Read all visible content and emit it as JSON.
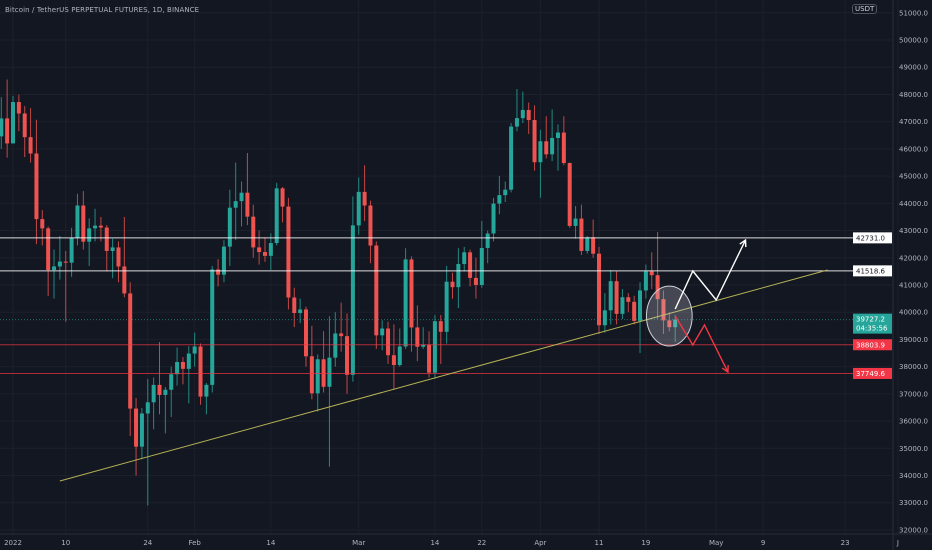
{
  "header": {
    "title": "Bitcoin / TetherUS PERPETUAL FUTURES, 1D, BINANCE",
    "currency": "USDT"
  },
  "colors": {
    "background": "#131722",
    "up": "#26a69a",
    "down": "#ef5350",
    "grid": "#1c202b",
    "support": "#ffffff",
    "resistance_red": "#f23645",
    "trendline": "#b5b254"
  },
  "chart_data": {
    "type": "candlestick",
    "title": "Bitcoin / TetherUS PERPETUAL FUTURES, 1D, BINANCE",
    "ylim": [
      32000,
      51000
    ],
    "x_range": [
      "2021-12-30",
      "2022-06-06"
    ],
    "grid": true,
    "y_ticks": [
      32000,
      33000,
      34000,
      35000,
      36000,
      37000,
      38000,
      39000,
      40000,
      41000,
      42000,
      43000,
      44000,
      45000,
      46000,
      47000,
      48000,
      49000,
      50000,
      51000
    ],
    "y_tick_labels": [
      "32000.0",
      "33000.0",
      "34000.0",
      "35000.0",
      "36000.0",
      "37000.0",
      "38000.0",
      "39000.0",
      "40000.0",
      "41000.0",
      "42000.0",
      "43000.0",
      "44000.0",
      "45000.0",
      "46000.0",
      "47000.0",
      "48000.0",
      "49000.0",
      "50000.0",
      "51000.0"
    ],
    "x_ticks": [
      {
        "label": "2022",
        "date": "2022-01-01"
      },
      {
        "label": "10",
        "date": "2022-01-10"
      },
      {
        "label": "24",
        "date": "2022-01-24"
      },
      {
        "label": "Feb",
        "date": "2022-02-01"
      },
      {
        "label": "14",
        "date": "2022-02-14"
      },
      {
        "label": "Mar",
        "date": "2022-03-01"
      },
      {
        "label": "14",
        "date": "2022-03-14"
      },
      {
        "label": "22",
        "date": "2022-03-22"
      },
      {
        "label": "Apr",
        "date": "2022-04-01"
      },
      {
        "label": "11",
        "date": "2022-04-11"
      },
      {
        "label": "19",
        "date": "2022-04-19"
      },
      {
        "label": "May",
        "date": "2022-05-01"
      },
      {
        "label": "9",
        "date": "2022-05-09"
      },
      {
        "label": "23",
        "date": "2022-05-23"
      },
      {
        "label": "J",
        "date": "2022-06-01"
      }
    ],
    "candles_format": [
      "date",
      "open",
      "high",
      "low",
      "close"
    ],
    "candles": [
      [
        "2021-12-30",
        46460,
        47900,
        46000,
        47120
      ],
      [
        "2021-12-31",
        47120,
        48550,
        45680,
        46200
      ],
      [
        "2022-01-01",
        46200,
        47950,
        46200,
        47720
      ],
      [
        "2022-01-02",
        47720,
        47990,
        46650,
        47300
      ],
      [
        "2022-01-03",
        47300,
        47570,
        45700,
        46430
      ],
      [
        "2022-01-04",
        46430,
        47500,
        45500,
        45830
      ],
      [
        "2022-01-05",
        45830,
        47070,
        42500,
        43420
      ],
      [
        "2022-01-06",
        43420,
        43750,
        42450,
        43080
      ],
      [
        "2022-01-07",
        43080,
        43150,
        40600,
        41550
      ],
      [
        "2022-01-08",
        41550,
        42300,
        40500,
        41680
      ],
      [
        "2022-01-09",
        41680,
        42800,
        41200,
        41860
      ],
      [
        "2022-01-10",
        41860,
        42250,
        39650,
        41820
      ],
      [
        "2022-01-11",
        41820,
        43100,
        41300,
        42730
      ],
      [
        "2022-01-12",
        42730,
        44350,
        42450,
        43920
      ],
      [
        "2022-01-13",
        43920,
        44450,
        42300,
        42590
      ],
      [
        "2022-01-14",
        42590,
        43450,
        41700,
        43080
      ],
      [
        "2022-01-15",
        43080,
        43800,
        42600,
        43180
      ],
      [
        "2022-01-16",
        43180,
        43500,
        42600,
        43110
      ],
      [
        "2022-01-17",
        43110,
        43200,
        41500,
        42250
      ],
      [
        "2022-01-18",
        42250,
        42700,
        41250,
        42380
      ],
      [
        "2022-01-19",
        42380,
        42600,
        41100,
        41680
      ],
      [
        "2022-01-20",
        41680,
        43500,
        40550,
        40690
      ],
      [
        "2022-01-21",
        40690,
        41100,
        35450,
        36460
      ],
      [
        "2022-01-22",
        36460,
        36850,
        34000,
        35060
      ],
      [
        "2022-01-23",
        35060,
        36480,
        34600,
        36280
      ],
      [
        "2022-01-24",
        36280,
        37550,
        32900,
        36690
      ],
      [
        "2022-01-25",
        36690,
        37600,
        35700,
        37330
      ],
      [
        "2022-01-26",
        37330,
        38900,
        36250,
        36960
      ],
      [
        "2022-01-27",
        36960,
        37250,
        35550,
        37150
      ],
      [
        "2022-01-28",
        37150,
        38000,
        36150,
        37720
      ],
      [
        "2022-01-29",
        37720,
        38700,
        37300,
        38170
      ],
      [
        "2022-01-30",
        38170,
        38350,
        37350,
        37920
      ],
      [
        "2022-01-31",
        37920,
        38750,
        36650,
        38480
      ],
      [
        "2022-02-01",
        38480,
        39250,
        38000,
        38740
      ],
      [
        "2022-02-02",
        38740,
        38850,
        36600,
        36900
      ],
      [
        "2022-02-03",
        36900,
        37400,
        36250,
        37330
      ],
      [
        "2022-02-04",
        37330,
        41700,
        37050,
        41570
      ],
      [
        "2022-02-05",
        41570,
        41950,
        40950,
        41380
      ],
      [
        "2022-02-06",
        41380,
        42650,
        41100,
        42410
      ],
      [
        "2022-02-07",
        42410,
        44500,
        41700,
        43840
      ],
      [
        "2022-02-08",
        43840,
        45500,
        42650,
        44080
      ],
      [
        "2022-02-09",
        44080,
        44800,
        43150,
        44390
      ],
      [
        "2022-02-10",
        44390,
        45850,
        43200,
        43510
      ],
      [
        "2022-02-11",
        43510,
        43950,
        42000,
        42380
      ],
      [
        "2022-02-12",
        42380,
        43000,
        41750,
        42210
      ],
      [
        "2022-02-13",
        42210,
        42750,
        41850,
        42070
      ],
      [
        "2022-02-14",
        42070,
        42900,
        41550,
        42540
      ],
      [
        "2022-02-15",
        42540,
        44750,
        42450,
        44550
      ],
      [
        "2022-02-16",
        44550,
        44600,
        43300,
        43880
      ],
      [
        "2022-02-17",
        43880,
        44200,
        40100,
        40540
      ],
      [
        "2022-02-18",
        40540,
        40900,
        39450,
        39970
      ],
      [
        "2022-02-19",
        39970,
        40500,
        39600,
        40100
      ],
      [
        "2022-02-20",
        40100,
        40200,
        38000,
        38380
      ],
      [
        "2022-02-21",
        38380,
        39500,
        36800,
        37020
      ],
      [
        "2022-02-22",
        37020,
        38450,
        36350,
        38270
      ],
      [
        "2022-02-23",
        38270,
        39300,
        37050,
        37260
      ],
      [
        "2022-02-24",
        37260,
        39850,
        34320,
        38330
      ],
      [
        "2022-02-25",
        38330,
        40000,
        38000,
        39220
      ],
      [
        "2022-02-26",
        39220,
        40350,
        38550,
        39120
      ],
      [
        "2022-02-27",
        39120,
        39950,
        37000,
        37700
      ],
      [
        "2022-02-28",
        37700,
        44250,
        37450,
        43190
      ],
      [
        "2022-03-01",
        43190,
        44950,
        42850,
        44420
      ],
      [
        "2022-03-02",
        44420,
        45400,
        43350,
        43920
      ],
      [
        "2022-03-03",
        43920,
        44100,
        41800,
        42450
      ],
      [
        "2022-03-04",
        42450,
        42600,
        38650,
        39150
      ],
      [
        "2022-03-05",
        39150,
        39700,
        38600,
        39400
      ],
      [
        "2022-03-06",
        39400,
        39650,
        38100,
        38420
      ],
      [
        "2022-03-07",
        38420,
        39550,
        37150,
        38060
      ],
      [
        "2022-03-08",
        38060,
        39400,
        38000,
        38740
      ],
      [
        "2022-03-09",
        38740,
        42350,
        38650,
        41940
      ],
      [
        "2022-03-10",
        41940,
        42050,
        38550,
        39440
      ],
      [
        "2022-03-11",
        39440,
        40250,
        38200,
        38730
      ],
      [
        "2022-03-12",
        38730,
        39450,
        38650,
        38810
      ],
      [
        "2022-03-13",
        38810,
        39300,
        37600,
        37780
      ],
      [
        "2022-03-14",
        37780,
        39900,
        37550,
        39670
      ],
      [
        "2022-03-15",
        39670,
        39900,
        38100,
        39280
      ],
      [
        "2022-03-16",
        39280,
        41700,
        38850,
        41120
      ],
      [
        "2022-03-17",
        41120,
        41450,
        40500,
        40920
      ],
      [
        "2022-03-18",
        40920,
        42350,
        40150,
        41770
      ],
      [
        "2022-03-19",
        41770,
        42400,
        41500,
        42200
      ],
      [
        "2022-03-20",
        42200,
        42300,
        40950,
        41260
      ],
      [
        "2022-03-21",
        41260,
        42000,
        40500,
        41000
      ],
      [
        "2022-03-22",
        41000,
        43350,
        40900,
        42360
      ],
      [
        "2022-03-23",
        42360,
        43000,
        41800,
        42890
      ],
      [
        "2022-03-24",
        42890,
        44200,
        42600,
        43990
      ],
      [
        "2022-03-25",
        43990,
        45000,
        43600,
        44300
      ],
      [
        "2022-03-26",
        44300,
        44800,
        44050,
        44500
      ],
      [
        "2022-03-27",
        44500,
        46950,
        44400,
        46820
      ],
      [
        "2022-03-28",
        46820,
        48200,
        46650,
        47130
      ],
      [
        "2022-03-29",
        47130,
        48100,
        46950,
        47430
      ],
      [
        "2022-03-30",
        47430,
        47700,
        46550,
        47060
      ],
      [
        "2022-03-31",
        47060,
        47600,
        45200,
        45510
      ],
      [
        "2022-04-01",
        45510,
        46700,
        44200,
        46280
      ],
      [
        "2022-04-02",
        46280,
        47200,
        45650,
        45800
      ],
      [
        "2022-04-03",
        45800,
        47450,
        45550,
        46400
      ],
      [
        "2022-04-04",
        46400,
        46900,
        45200,
        46600
      ],
      [
        "2022-04-05",
        46600,
        47200,
        45400,
        45480
      ],
      [
        "2022-04-06",
        45480,
        45500,
        43100,
        43170
      ],
      [
        "2022-04-07",
        43170,
        43900,
        42700,
        43440
      ],
      [
        "2022-04-08",
        43440,
        43950,
        42100,
        42250
      ],
      [
        "2022-04-09",
        42250,
        42800,
        42150,
        42750
      ],
      [
        "2022-04-10",
        42750,
        43400,
        42000,
        42150
      ],
      [
        "2022-04-11",
        42150,
        42400,
        39200,
        39520
      ],
      [
        "2022-04-12",
        39520,
        40700,
        39250,
        40070
      ],
      [
        "2022-04-13",
        40070,
        41550,
        39550,
        41140
      ],
      [
        "2022-04-14",
        41140,
        41500,
        39550,
        39940
      ],
      [
        "2022-04-15",
        39940,
        40850,
        39750,
        40550
      ],
      [
        "2022-04-16",
        40550,
        40700,
        40000,
        40380
      ],
      [
        "2022-04-17",
        40380,
        40600,
        39550,
        39680
      ],
      [
        "2022-04-18",
        39680,
        41100,
        38500,
        40800
      ],
      [
        "2022-04-19",
        40800,
        41750,
        40500,
        41500
      ],
      [
        "2022-04-20",
        41500,
        42200,
        40850,
        41360
      ],
      [
        "2022-04-21",
        41360,
        42950,
        39750,
        40480
      ],
      [
        "2022-04-22",
        40480,
        40800,
        39200,
        39700
      ],
      [
        "2022-04-23",
        39700,
        40000,
        39300,
        39450
      ],
      [
        "2022-04-24",
        39450,
        39900,
        38900,
        39727.2
      ]
    ],
    "horizontal_levels": [
      {
        "price": 42731.0,
        "label": "42731.0",
        "color": "#ffffff"
      },
      {
        "price": 41518.6,
        "label": "41518.6",
        "color": "#ffffff"
      },
      {
        "price": 38803.9,
        "label": "38803.9",
        "color": "#f23645"
      },
      {
        "price": 37749.6,
        "label": "37749.6",
        "color": "#f23645"
      }
    ],
    "last_price": {
      "price": 39727.2,
      "label": "39727.2",
      "countdown": "04:35:56",
      "color": "#26a69a"
    },
    "drawings": {
      "trendline": [
        [
          "2022-01-09",
          33800
        ],
        [
          "2022-05-20",
          41550
        ]
      ],
      "ellipse": {
        "center": [
          "2022-04-23",
          39860
        ],
        "half_width_days": 3.9,
        "half_height_price": 1100
      },
      "bullish_path": [
        [
          "2022-04-24",
          40117
        ],
        [
          "2022-04-27",
          41513
        ],
        [
          "2022-05-01",
          40448
        ],
        [
          "2022-05-06",
          42650
        ]
      ],
      "bearish_path": [
        [
          "2022-04-24",
          39860
        ],
        [
          "2022-04-27",
          38795
        ],
        [
          "2022-04-29",
          39530
        ],
        [
          "2022-05-03",
          37800
        ]
      ]
    }
  }
}
